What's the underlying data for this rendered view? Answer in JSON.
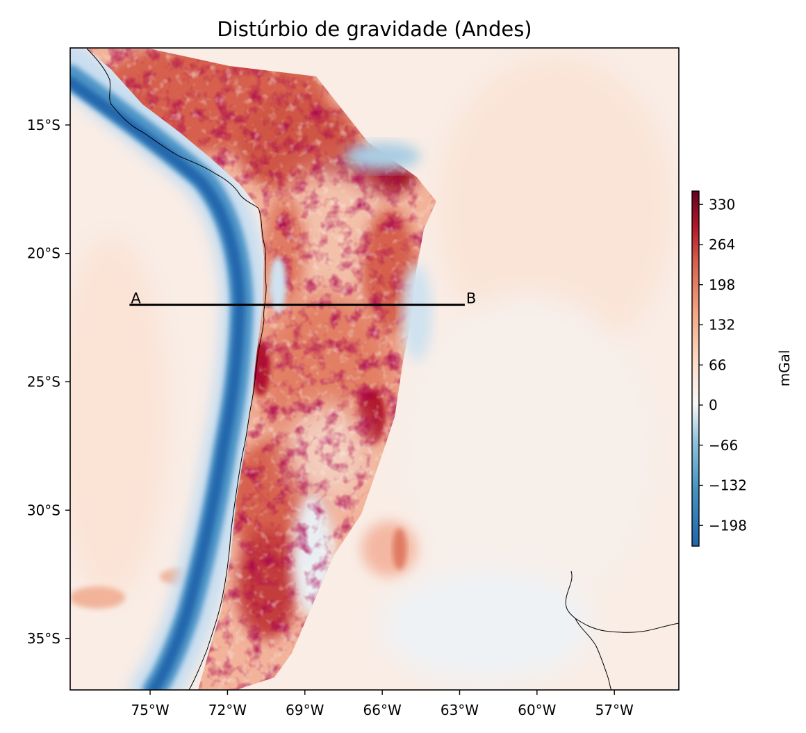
{
  "title": "Distúrbio de gravidade (Andes)",
  "map": {
    "lon_range": [
      -78.1,
      -54.5
    ],
    "lat_range": [
      -37.0,
      -12.0
    ],
    "lon_ticks": [
      {
        "value": -75,
        "label": "75°W"
      },
      {
        "value": -72,
        "label": "72°W"
      },
      {
        "value": -69,
        "label": "69°W"
      },
      {
        "value": -66,
        "label": "66°W"
      },
      {
        "value": -63,
        "label": "63°W"
      },
      {
        "value": -60,
        "label": "60°W"
      },
      {
        "value": -57,
        "label": "57°W"
      }
    ],
    "lat_ticks": [
      {
        "value": -15,
        "label": "15°S"
      },
      {
        "value": -20,
        "label": "20°S"
      },
      {
        "value": -25,
        "label": "25°S"
      },
      {
        "value": -30,
        "label": "30°S"
      },
      {
        "value": -35,
        "label": "35°S"
      }
    ],
    "colormap": "RdBu_r",
    "colors": {
      "deep_blue": "#2166ac",
      "light_blue": "#92c5de",
      "white": "#f7f7f7",
      "light_red": "#f4a582",
      "red": "#d6604d",
      "deep_red": "#67001f"
    }
  },
  "profile": {
    "start": {
      "label": "A",
      "lon": -75.8,
      "lat": -22.0
    },
    "end": {
      "label": "B",
      "lon": -62.8,
      "lat": -22.0
    }
  },
  "colorbar": {
    "label": "mGal",
    "range": [
      -232,
      352
    ],
    "ticks": [
      {
        "value": 330,
        "label": "330"
      },
      {
        "value": 264,
        "label": "264"
      },
      {
        "value": 198,
        "label": "198"
      },
      {
        "value": 132,
        "label": "132"
      },
      {
        "value": 66,
        "label": "66"
      },
      {
        "value": 0,
        "label": "0"
      },
      {
        "value": -66,
        "label": "−66"
      },
      {
        "value": -132,
        "label": "−132"
      },
      {
        "value": -198,
        "label": "−198"
      }
    ]
  }
}
